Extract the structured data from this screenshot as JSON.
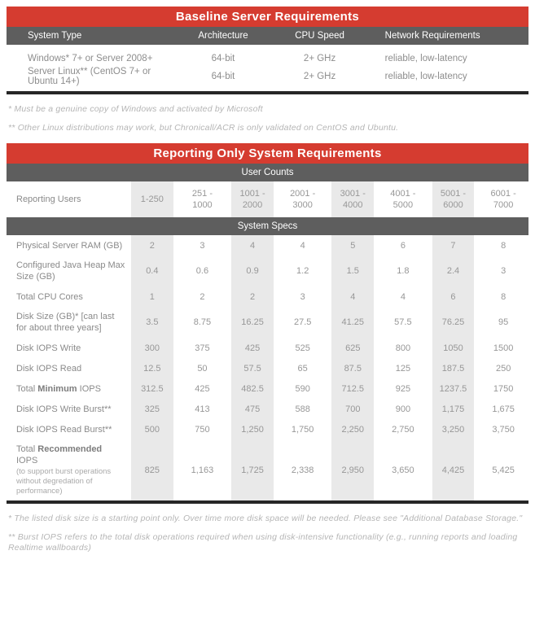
{
  "colors": {
    "accent_red": "#d53c30",
    "banner_gray": "#5e5e5e",
    "column_shade": "#e9e9e9",
    "text_gray": "#8a8a8a",
    "footnote_gray": "#b5b5b5",
    "rule_black": "#262626"
  },
  "baseline_table": {
    "title": "Baseline Server Requirements",
    "columns": [
      "System Type",
      "Architecture",
      "CPU Speed",
      "Network Requirements"
    ],
    "rows": [
      [
        "Windows* 7+ or Server 2008+",
        "64-bit",
        "2+ GHz",
        "reliable, low-latency"
      ],
      [
        "Server Linux** (CentOS 7+ or Ubuntu 14+)",
        "64-bit",
        "2+ GHz",
        "reliable, low-latency"
      ]
    ],
    "footnotes": [
      "* Must be a genuine copy of Windows and activated by Microsoft",
      "** Other Linux distributions may work, but Chronicall/ACR is only validated on CentOS and Ubuntu."
    ]
  },
  "reporting_table": {
    "title": "Reporting Only System Requirements",
    "user_counts_banner": "User Counts",
    "system_specs_banner": "System Specs",
    "user_counts_row": {
      "label": "Reporting Users",
      "ranges": [
        "1-250",
        "251 -\n1000",
        "1001 -\n2000",
        "2001 -\n3000",
        "3001 -\n4000",
        "4001 -\n5000",
        "5001 -\n6000",
        "6001 -\n7000"
      ]
    },
    "spec_rows": [
      {
        "label": "Physical Server RAM (GB)",
        "values": [
          "2",
          "3",
          "4",
          "4",
          "5",
          "6",
          "7",
          "8"
        ]
      },
      {
        "label": "Configured Java Heap Max Size (GB)",
        "values": [
          "0.4",
          "0.6",
          "0.9",
          "1.2",
          "1.5",
          "1.8",
          "2.4",
          "3"
        ]
      },
      {
        "label": "Total CPU Cores",
        "values": [
          "1",
          "2",
          "2",
          "3",
          "4",
          "4",
          "6",
          "8"
        ]
      },
      {
        "label": "Disk Size (GB)* [can last for about three years]",
        "values": [
          "3.5",
          "8.75",
          "16.25",
          "27.5",
          "41.25",
          "57.5",
          "76.25",
          "95"
        ]
      },
      {
        "label": "Disk IOPS Write",
        "values": [
          "300",
          "375",
          "425",
          "525",
          "625",
          "800",
          "1050",
          "1500"
        ]
      },
      {
        "label": "Disk IOPS Read",
        "values": [
          "12.5",
          "50",
          "57.5",
          "65",
          "87.5",
          "125",
          "187.5",
          "250"
        ]
      },
      {
        "label_prefix": "Total ",
        "label_bold": "Minimum",
        "label_suffix": " IOPS",
        "values": [
          "312.5",
          "425",
          "482.5",
          "590",
          "712.5",
          "925",
          "1237.5",
          "1750"
        ]
      },
      {
        "label": "Disk IOPS Write Burst**",
        "values": [
          "325",
          "413",
          "475",
          "588",
          "700",
          "900",
          "1,175",
          "1,675"
        ]
      },
      {
        "label": "Disk IOPS Read Burst**",
        "values": [
          "500",
          "750",
          "1,250",
          "1,750",
          "2,250",
          "2,750",
          "3,250",
          "3,750"
        ]
      },
      {
        "label_prefix": "Total ",
        "label_bold": "Recommended",
        "label_suffix": " IOPS",
        "label_note": "(to support burst operations without degredation of performance)",
        "values": [
          "825",
          "1,163",
          "1,725",
          "2,338",
          "2,950",
          "3,650",
          "4,425",
          "5,425"
        ]
      }
    ],
    "footnotes": [
      "* The listed disk size is a starting point only. Over time more disk space will be needed. Please see \"Additional Database Storage.\"",
      "** Burst IOPS refers to the total disk operations required when using disk-intensive functionality (e.g., running reports and loading Realtime wallboards)"
    ]
  }
}
